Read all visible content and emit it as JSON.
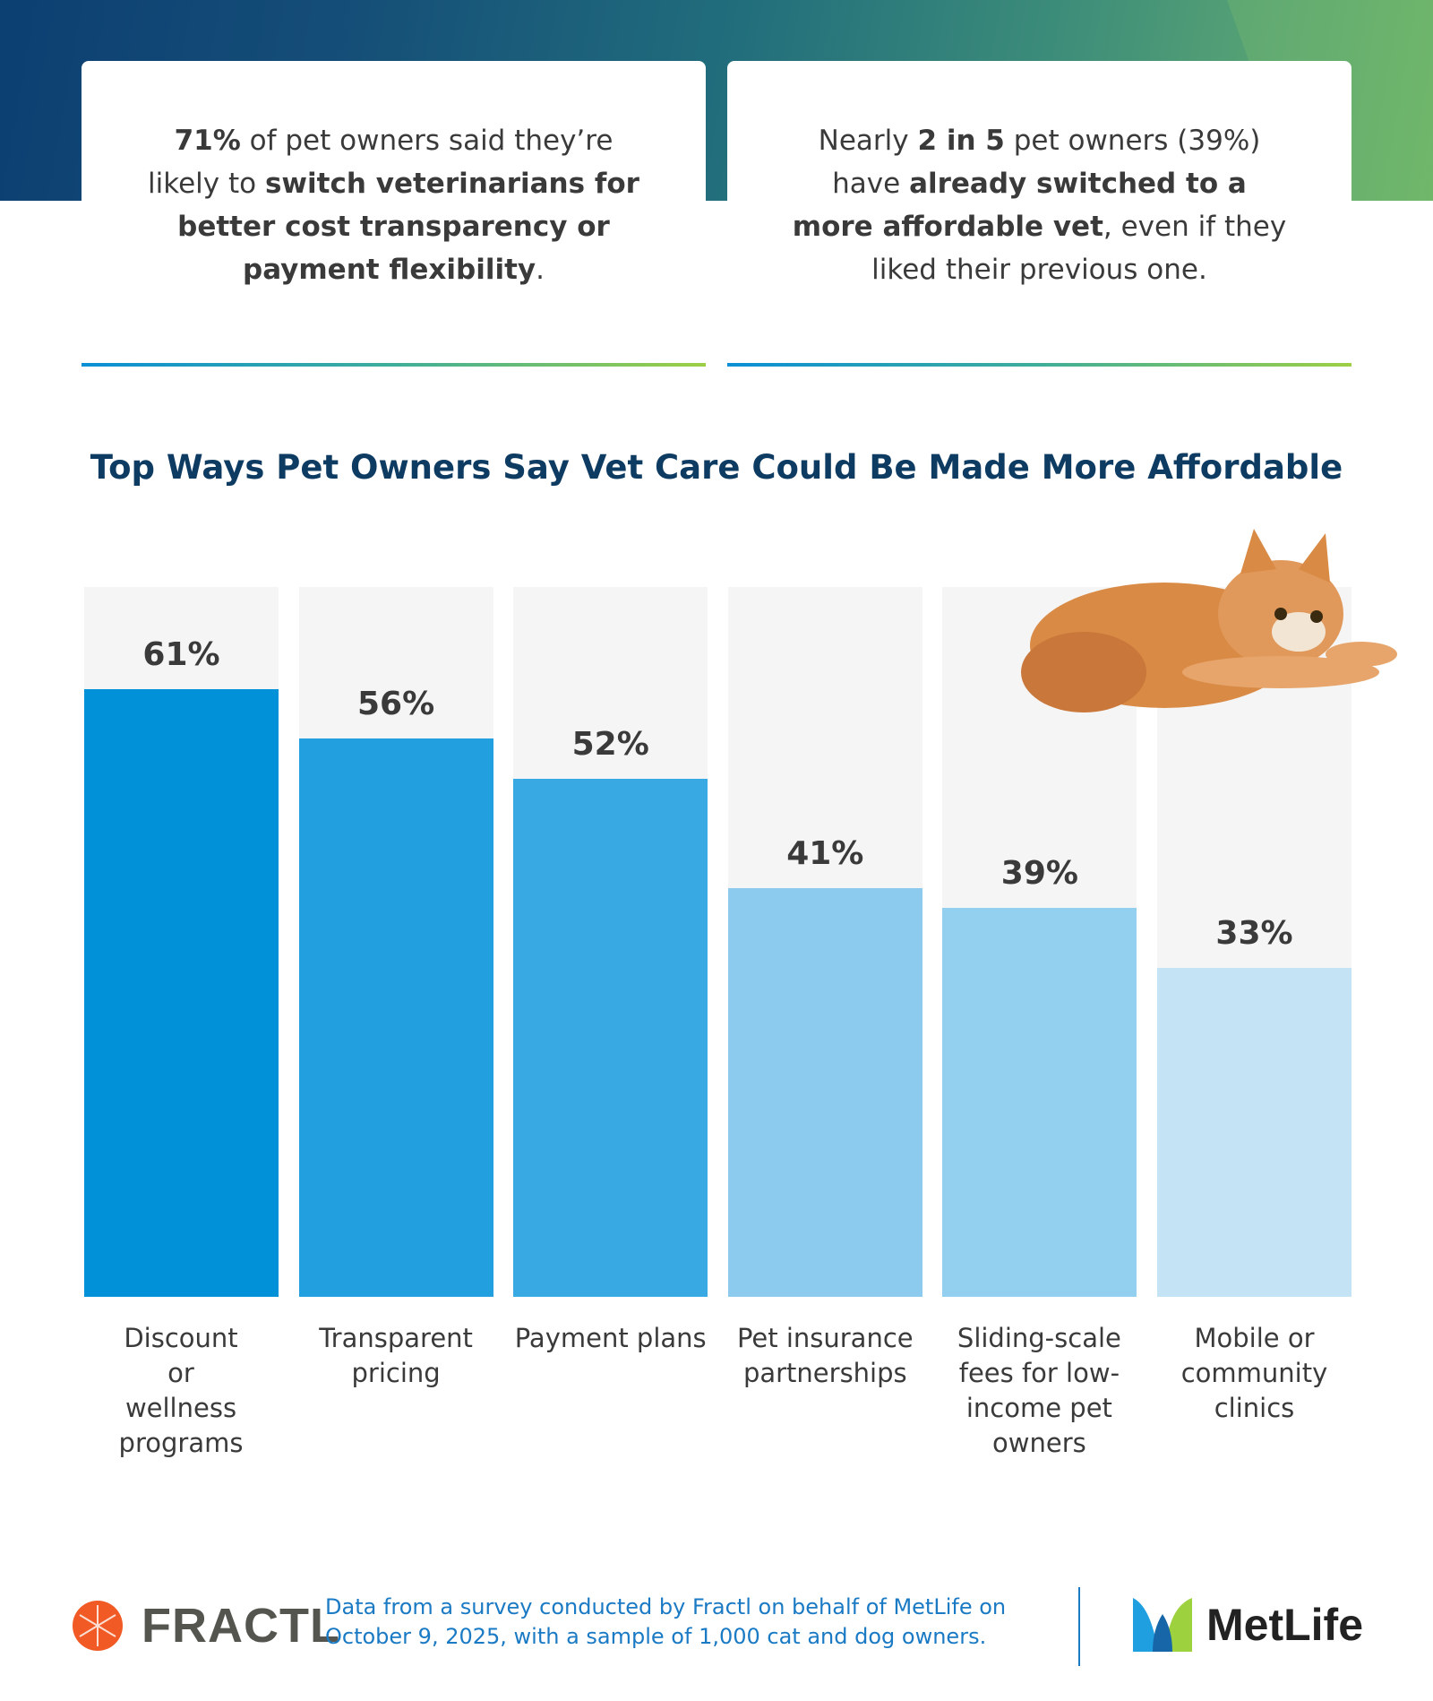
{
  "stats": [
    {
      "parts": [
        {
          "t": "71%",
          "b": true
        },
        {
          "t": " of pet owners said they’re likely to ",
          "b": false
        },
        {
          "t": "switch veterinarians for better cost transparency or payment flexibility",
          "b": true
        },
        {
          "t": ".",
          "b": false
        }
      ]
    },
    {
      "parts": [
        {
          "t": "Nearly ",
          "b": false
        },
        {
          "t": "2 in 5",
          "b": true
        },
        {
          "t": " pet owners (39%) have ",
          "b": false
        },
        {
          "t": "already switched to a more affordable vet",
          "b": true
        },
        {
          "t": ", even if they liked their previous one.",
          "b": false
        }
      ]
    }
  ],
  "chart_data": {
    "type": "bar",
    "title": "Top Ways Pet Owners Say Vet Care Could Be Made More Affordable",
    "categories": [
      "Discount or wellness programs",
      "Transparent pricing",
      "Payment plans",
      "Pet insurance partnerships",
      "Sliding-scale fees for low-income pet owners",
      "Mobile or community clinics"
    ],
    "values": [
      61,
      56,
      52,
      41,
      39,
      33
    ],
    "value_labels": [
      "61%",
      "56%",
      "52%",
      "41%",
      "39%",
      "33%"
    ],
    "unit": "%",
    "colors": [
      "#0091d9",
      "#229fdf",
      "#38a9e2",
      "#8ccbee",
      "#93cfef",
      "#c4e4f6"
    ],
    "grid": false,
    "ylim": [
      0,
      71
    ]
  },
  "footer": {
    "note": "Data from a survey conducted by Fractl on behalf of MetLife on October 9, 2025, with a sample of 1,000 cat and dog owners.",
    "logo_left": "FRACTL",
    "logo_right": "MetLife"
  }
}
